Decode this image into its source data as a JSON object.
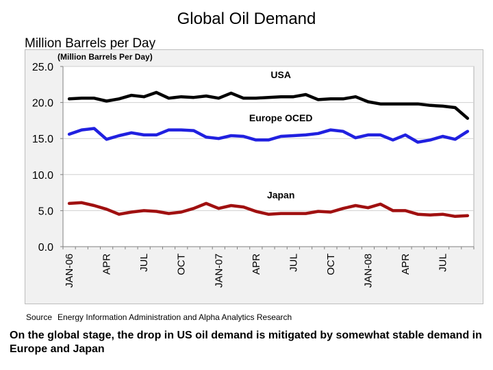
{
  "slide": {
    "title": "Global Oil Demand",
    "subtitle": "Million Barrels per Day",
    "source_label": "Source",
    "source_text": "Energy Information Administration and Alpha Analytics Research",
    "caption": "On the global stage, the drop in US oil demand is mitigated by somewhat stable demand in Europe and Japan"
  },
  "chart_data": {
    "type": "line",
    "title": "Global Oil Demand",
    "ylabel": "(Million Barrels Per Day)",
    "ylim": [
      0,
      25
    ],
    "yticks": [
      "0.0",
      "5.0",
      "10.0",
      "15.0",
      "20.0",
      "25.0"
    ],
    "grid": true,
    "x": [
      "Jan-06",
      "Feb-06",
      "Mar-06",
      "Apr-06",
      "May-06",
      "Jun-06",
      "Jul-06",
      "Aug-06",
      "Sep-06",
      "Oct-06",
      "Nov-06",
      "Dec-06",
      "Jan-07",
      "Feb-07",
      "Mar-07",
      "Apr-07",
      "May-07",
      "Jun-07",
      "Jul-07",
      "Aug-07",
      "Sep-07",
      "Oct-07",
      "Nov-07",
      "Dec-07",
      "Jan-08",
      "Feb-08",
      "Mar-08",
      "Apr-08",
      "May-08",
      "Jun-08",
      "Jul-08",
      "Aug-08",
      "Sep-08"
    ],
    "x_tick_labels": [
      {
        "index": 0,
        "label": "JAN-06"
      },
      {
        "index": 3,
        "label": "APR"
      },
      {
        "index": 6,
        "label": "JUL"
      },
      {
        "index": 9,
        "label": "OCT"
      },
      {
        "index": 12,
        "label": "JAN-07"
      },
      {
        "index": 15,
        "label": "APR"
      },
      {
        "index": 18,
        "label": "JUL"
      },
      {
        "index": 21,
        "label": "OCT"
      },
      {
        "index": 24,
        "label": "JAN-08"
      },
      {
        "index": 27,
        "label": "APR"
      },
      {
        "index": 30,
        "label": "JUL"
      }
    ],
    "series": [
      {
        "name": "USA",
        "color": "#000000",
        "values": [
          20.5,
          20.6,
          20.6,
          20.2,
          20.5,
          21.0,
          20.8,
          21.4,
          20.6,
          20.8,
          20.7,
          20.9,
          20.6,
          21.3,
          20.6,
          20.6,
          20.7,
          20.8,
          20.8,
          21.1,
          20.4,
          20.5,
          20.5,
          20.8,
          20.1,
          19.8,
          19.8,
          19.8,
          19.8,
          19.6,
          19.5,
          19.3,
          17.8
        ]
      },
      {
        "name": "Europe OCED",
        "color": "#2020e0",
        "values": [
          15.6,
          16.2,
          16.4,
          14.9,
          15.4,
          15.8,
          15.5,
          15.5,
          16.2,
          16.2,
          16.1,
          15.2,
          15.0,
          15.4,
          15.3,
          14.8,
          14.8,
          15.3,
          15.4,
          15.5,
          15.7,
          16.2,
          16.0,
          15.1,
          15.5,
          15.5,
          14.8,
          15.5,
          14.5,
          14.8,
          15.3,
          14.9,
          16.0
        ]
      },
      {
        "name": "Japan",
        "color": "#a01010",
        "values": [
          6.0,
          6.1,
          5.7,
          5.2,
          4.5,
          4.8,
          5.0,
          4.9,
          4.6,
          4.8,
          5.3,
          6.0,
          5.3,
          5.7,
          5.5,
          4.9,
          4.5,
          4.6,
          4.6,
          4.6,
          4.9,
          4.8,
          5.3,
          5.7,
          5.4,
          5.9,
          5.0,
          5.0,
          4.5,
          4.4,
          4.5,
          4.2,
          4.3
        ]
      }
    ]
  }
}
